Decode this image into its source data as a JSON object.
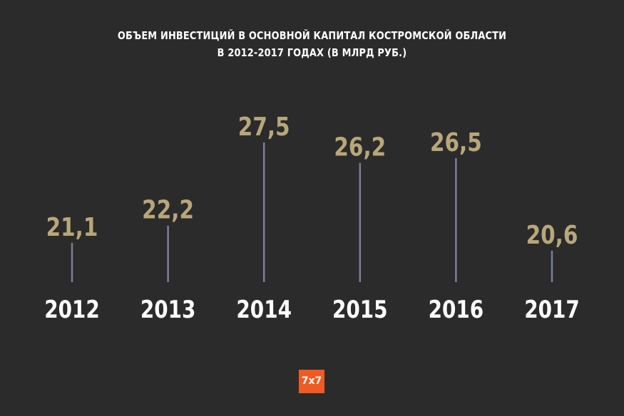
{
  "chart_data": {
    "type": "bar",
    "title_line1": "ОБЪЕМ ИНВЕСТИЦИЙ В ОСНОВНОЙ КАПИТАЛ КОСТРОМСКОЙ ОБЛАСТИ",
    "title_line2": "В 2012-2017 ГОДАХ (В МЛРД РУБ.)",
    "categories": [
      "2012",
      "2013",
      "2014",
      "2015",
      "2016",
      "2017"
    ],
    "values": [
      21.1,
      22.2,
      27.5,
      26.2,
      26.5,
      20.6
    ],
    "value_labels": [
      "21,1",
      "22,2",
      "27,5",
      "26,2",
      "26,5",
      "20,6"
    ],
    "colors": {
      "background": "#2b2b2b",
      "stem": "#7b7d9c",
      "value_label": "#b8a77a",
      "category_label": "#ffffff"
    }
  },
  "logo": {
    "text": "7x7",
    "color": "#f15a22"
  }
}
